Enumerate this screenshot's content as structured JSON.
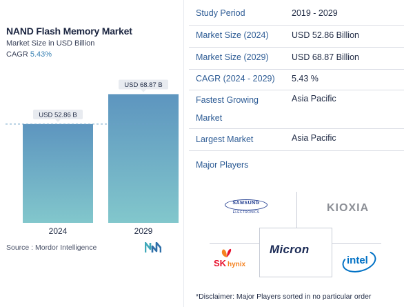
{
  "left_panel": {
    "title": "NAND Flash Memory Market",
    "subtitle": "Market Size in USD Billion",
    "cagr_label": "CAGR",
    "cagr_value": "5.43%",
    "source": "Source :  Mordor Intelligence"
  },
  "chart_data": {
    "type": "bar",
    "title": "NAND Flash Memory Market",
    "subtitle": "Market Size in USD Billion",
    "categories": [
      "2024",
      "2029"
    ],
    "values": [
      52.86,
      68.87
    ],
    "data_labels": [
      "USD 52.86 B",
      "USD 68.87 B"
    ],
    "ylim": [
      0,
      72
    ],
    "grid": false,
    "reference_line": 52.86,
    "colors": {
      "bar_top": "#5d95bf",
      "bar_bottom": "#82c7cc",
      "label_bg": "#e8ebf0",
      "ref_line": "#6aa0c8"
    }
  },
  "table": {
    "rows": [
      {
        "label": "Study Period",
        "value": "2019 - 2029"
      },
      {
        "label": "Market Size (2024)",
        "value": "USD 52.86 Billion"
      },
      {
        "label": "Market Size (2029)",
        "value": "USD 68.87 Billion"
      },
      {
        "label": "CAGR (2024 - 2029)",
        "value": "5.43 %"
      },
      {
        "label": "Fastest Growing Market",
        "value": "Asia Pacific"
      },
      {
        "label": "Largest Market",
        "value": "Asia Pacific"
      }
    ]
  },
  "players": {
    "heading": "Major Players",
    "logos": {
      "samsung": "SAMSUNG",
      "samsung_sub": "ELECTRONICS",
      "kioxia": "KIOXIA",
      "sk_hynix_sk": "SK",
      "sk_hynix_name": "hynix",
      "micron": "Micron",
      "intel": "intel"
    },
    "disclaimer": "*Disclaimer: Major Players sorted in no particular order"
  }
}
